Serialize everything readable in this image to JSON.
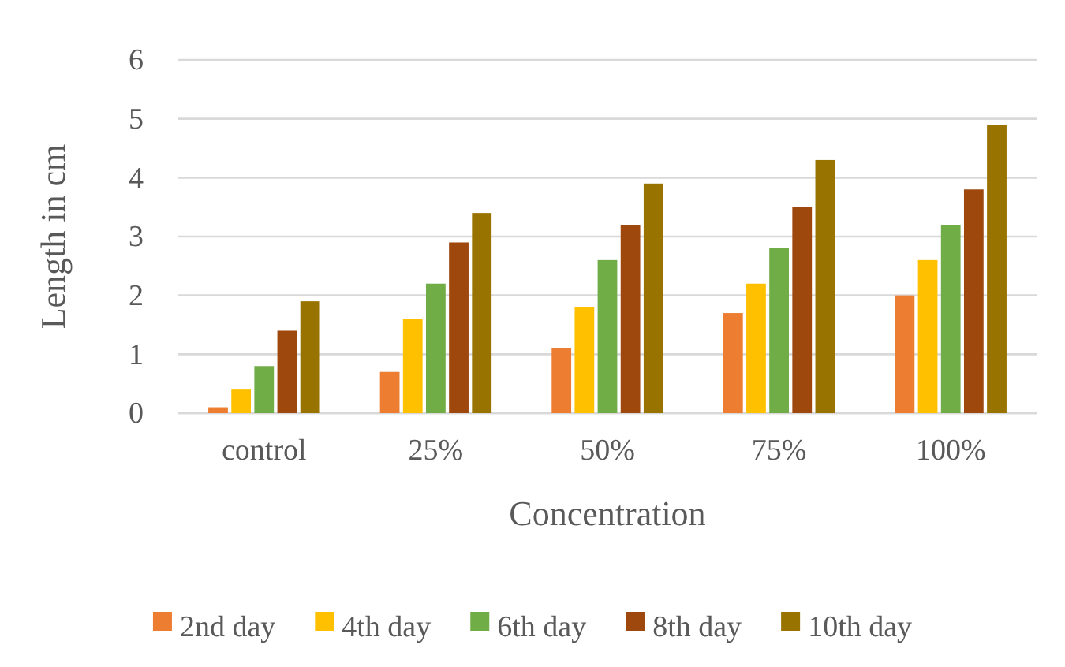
{
  "chart_data": {
    "type": "bar",
    "xlabel": "Concentration",
    "ylabel": "Length in cm",
    "categories": [
      "control",
      "25%",
      "50%",
      "75%",
      "100%"
    ],
    "series": [
      {
        "name": "2nd day",
        "color": "#ed7d31",
        "values": [
          0.1,
          0.7,
          1.1,
          1.7,
          2.0
        ]
      },
      {
        "name": "4th day",
        "color": "#ffc000",
        "values": [
          0.4,
          1.6,
          1.8,
          2.2,
          2.6
        ]
      },
      {
        "name": "6th day",
        "color": "#70ad47",
        "values": [
          0.8,
          2.2,
          2.6,
          2.8,
          3.2
        ]
      },
      {
        "name": "8th day",
        "color": "#9e480e",
        "values": [
          1.4,
          2.9,
          3.2,
          3.5,
          3.8
        ]
      },
      {
        "name": "10th day",
        "color": "#997300",
        "values": [
          1.9,
          3.4,
          3.9,
          4.3,
          4.9
        ]
      }
    ],
    "ylim": [
      0,
      6
    ],
    "yticks": [
      0,
      1,
      2,
      3,
      4,
      5,
      6
    ],
    "grid": "y",
    "legend": "bottom"
  }
}
